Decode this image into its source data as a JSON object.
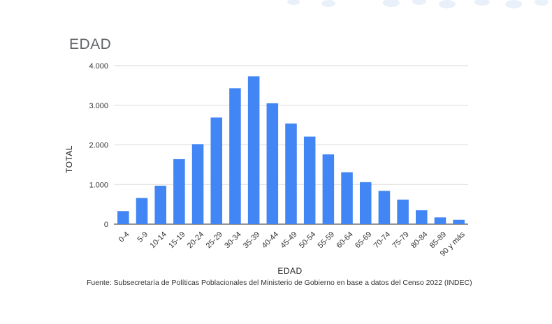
{
  "chart_data": {
    "type": "bar",
    "title": "EDAD",
    "xlabel": "EDAD",
    "ylabel": "TOTAL",
    "ylim": [
      0,
      4000
    ],
    "yticks": [
      "0",
      "1.000",
      "2.000",
      "3.000",
      "4.000"
    ],
    "ytick_values": [
      0,
      1000,
      2000,
      3000,
      4000
    ],
    "grid": true,
    "bar_color": "#4285f4",
    "categories": [
      "0-4",
      "5-9",
      "10-14",
      "15-19",
      "20-24",
      "25-29",
      "30-34",
      "35-39",
      "40-44",
      "45-49",
      "50-54",
      "55-59",
      "60-64",
      "65-69",
      "70-74",
      "75-79",
      "80-84",
      "85-89",
      "90 y más"
    ],
    "values": [
      330,
      660,
      970,
      1640,
      2020,
      2690,
      3430,
      3730,
      3050,
      2540,
      2210,
      1760,
      1310,
      1060,
      840,
      620,
      350,
      170,
      110
    ]
  },
  "source": "Fuente: Subsecretaría de Políticas Poblacionales del Ministerio de Gobierno en base a datos del Censo 2022 (INDEC)"
}
